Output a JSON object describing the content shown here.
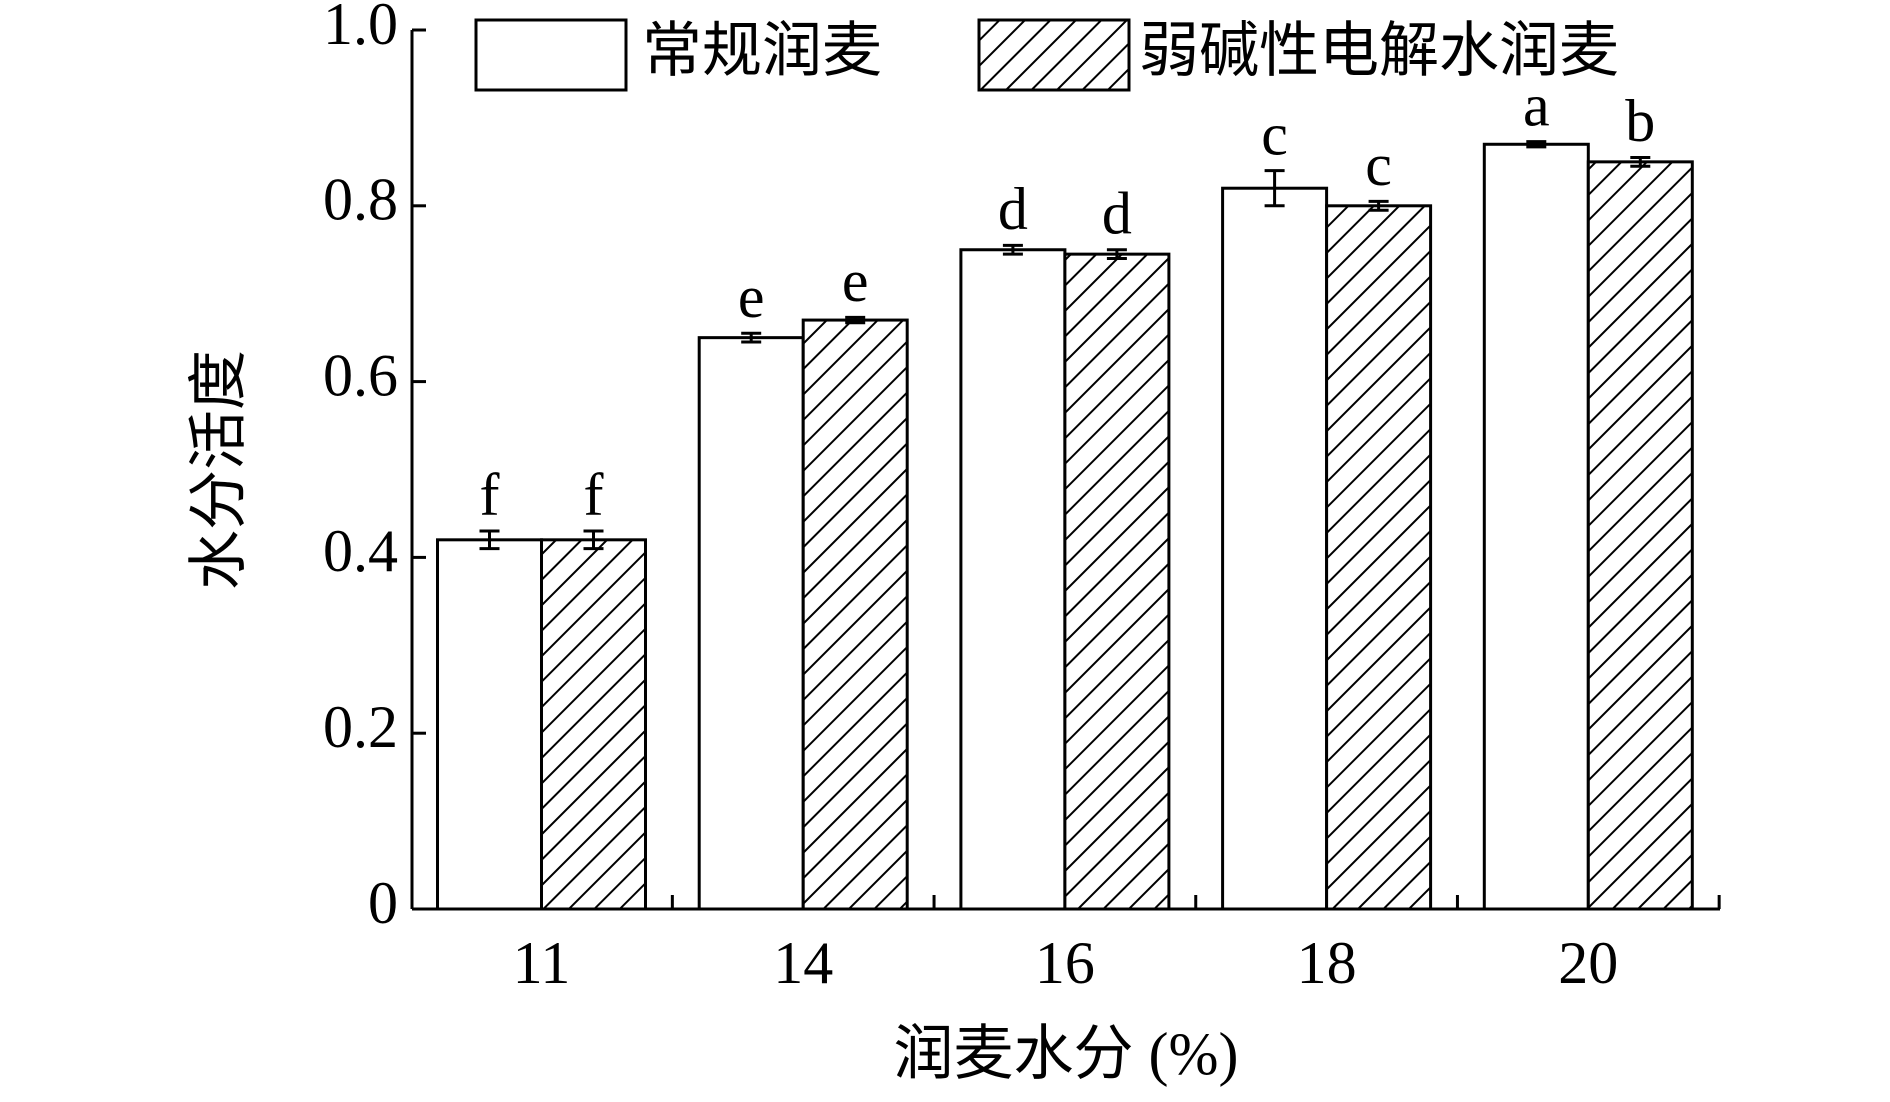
{
  "chart_data": {
    "type": "bar",
    "ylabel": "水分活度",
    "xlabel": "润麦水分 (%)",
    "categories": [
      "11",
      "14",
      "16",
      "18",
      "20"
    ],
    "series": [
      {
        "name": "常规润麦",
        "color": "#ffffff",
        "hatch": false,
        "values": [
          0.42,
          0.65,
          0.75,
          0.82,
          0.87
        ],
        "errors": [
          0.01,
          0.005,
          0.005,
          0.02,
          0.003
        ],
        "letters": [
          "f",
          "e",
          "d",
          "c",
          "a"
        ]
      },
      {
        "name": "弱碱性电解水润麦",
        "color": "#ffffff",
        "hatch": true,
        "values": [
          0.42,
          0.67,
          0.745,
          0.8,
          0.85
        ],
        "errors": [
          0.01,
          0.003,
          0.005,
          0.005,
          0.005
        ],
        "letters": [
          "f",
          "e",
          "d",
          "c",
          "b"
        ]
      }
    ],
    "ylim": [
      0,
      1
    ],
    "yticks": [
      0,
      0.2,
      0.4,
      0.6,
      0.8,
      {
        "value": 1,
        "label": "1.0"
      }
    ],
    "legend": "top"
  }
}
